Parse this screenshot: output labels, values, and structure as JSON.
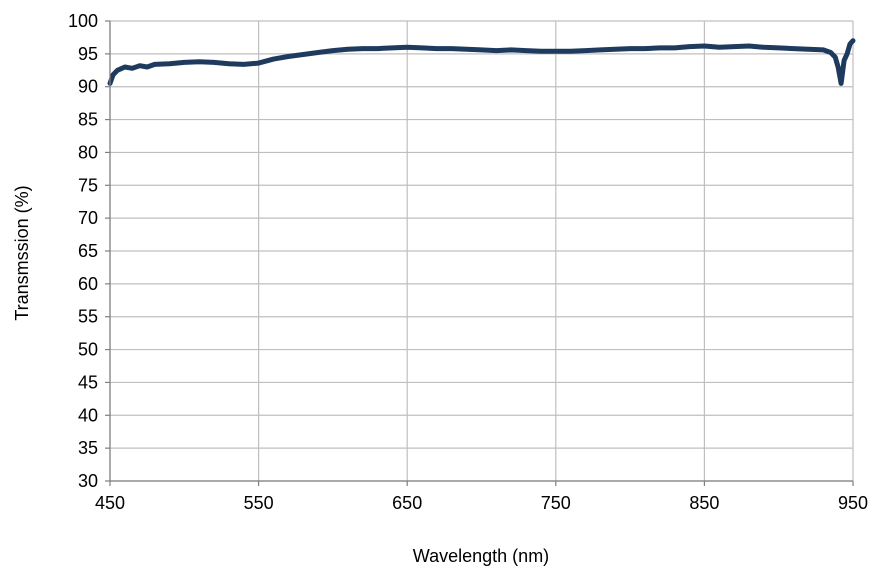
{
  "chart_data": {
    "type": "line",
    "title": "",
    "xlabel": "Wavelength (nm)",
    "ylabel": "Transmssion (%)",
    "xlim": [
      450,
      950
    ],
    "ylim": [
      30,
      100
    ],
    "x_ticks": [
      450,
      550,
      650,
      750,
      850,
      950
    ],
    "y_ticks": [
      30,
      35,
      40,
      45,
      50,
      55,
      60,
      65,
      70,
      75,
      80,
      85,
      90,
      95,
      100
    ],
    "grid": true,
    "legend": "none",
    "line_color": "#1f3a5f",
    "grid_color": "#bfbfbf",
    "series": [
      {
        "x": [
          450,
          452,
          455,
          460,
          465,
          470,
          475,
          480,
          490,
          500,
          510,
          520,
          530,
          540,
          550,
          560,
          570,
          580,
          590,
          600,
          610,
          620,
          630,
          640,
          650,
          660,
          670,
          680,
          690,
          700,
          710,
          720,
          730,
          740,
          750,
          760,
          770,
          780,
          790,
          800,
          810,
          820,
          830,
          840,
          850,
          860,
          870,
          880,
          890,
          900,
          910,
          920,
          930,
          935,
          938,
          940,
          942,
          944,
          946,
          948,
          950
        ],
        "y": [
          90.5,
          91.8,
          92.5,
          93.0,
          92.8,
          93.2,
          93.0,
          93.4,
          93.5,
          93.7,
          93.8,
          93.7,
          93.5,
          93.4,
          93.6,
          94.2,
          94.6,
          94.9,
          95.2,
          95.5,
          95.7,
          95.8,
          95.8,
          95.9,
          96.0,
          95.9,
          95.8,
          95.8,
          95.7,
          95.6,
          95.5,
          95.6,
          95.5,
          95.4,
          95.4,
          95.4,
          95.5,
          95.6,
          95.7,
          95.8,
          95.8,
          95.9,
          95.9,
          96.1,
          96.2,
          96.0,
          96.1,
          96.2,
          96.0,
          95.9,
          95.8,
          95.7,
          95.6,
          95.2,
          94.5,
          93.0,
          90.5,
          94.0,
          95.0,
          96.5,
          97.0
        ]
      }
    ]
  }
}
